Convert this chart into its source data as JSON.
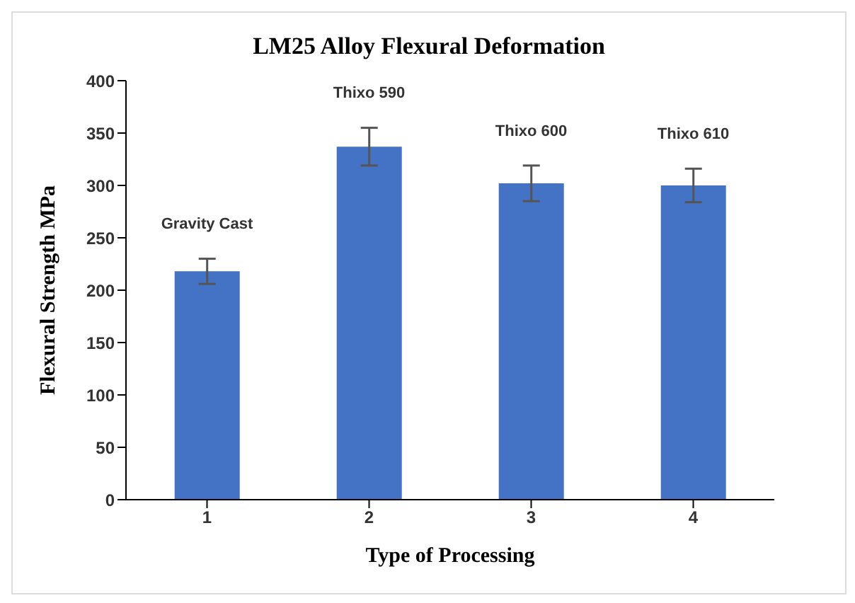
{
  "chart_data": {
    "type": "bar",
    "title": "LM25 Alloy Flexural Deformation",
    "xlabel": "Type of Processing",
    "ylabel": "Flexural Strength MPa",
    "categories": [
      "1",
      "2",
      "3",
      "4"
    ],
    "values": [
      218,
      337,
      302,
      300
    ],
    "errors": [
      12,
      18,
      17,
      16
    ],
    "color": "#4472c4",
    "ylim": [
      0,
      400
    ],
    "yticks": [
      0,
      50,
      100,
      150,
      200,
      250,
      300,
      350,
      400
    ],
    "grid": false,
    "legend": false,
    "annotations": [
      "Gravity Cast",
      "Thixo 590",
      "Thixo 600",
      "Thixo 610"
    ]
  }
}
